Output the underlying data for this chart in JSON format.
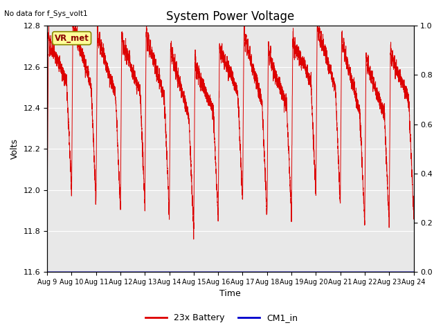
{
  "title": "System Power Voltage",
  "top_left_text": "No data for f_Sys_volt1",
  "xlabel": "Time",
  "ylabel": "Volts",
  "ylim_left": [
    11.6,
    12.8
  ],
  "ylim_right": [
    0.0,
    1.0
  ],
  "yticks_left": [
    11.6,
    11.8,
    12.0,
    12.2,
    12.4,
    12.6,
    12.8
  ],
  "yticks_right": [
    0.0,
    0.2,
    0.4,
    0.6,
    0.8,
    1.0
  ],
  "x_tick_labels": [
    "Aug 9",
    "Aug 10",
    "Aug 11",
    "Aug 12",
    "Aug 13",
    "Aug 14",
    "Aug 15",
    "Aug 16",
    "Aug 17",
    "Aug 18",
    "Aug 19",
    "Aug 20",
    "Aug 21",
    "Aug 22",
    "Aug 23",
    "Aug 24"
  ],
  "line_color_battery": "#DD0000",
  "line_color_cm1": "#0000CC",
  "legend_labels": [
    "23x Battery",
    "CM1_in"
  ],
  "annotation_label": "VR_met",
  "bg_color": "#E8E8E8",
  "title_fontsize": 12,
  "axis_label_fontsize": 9,
  "tick_fontsize": 8
}
